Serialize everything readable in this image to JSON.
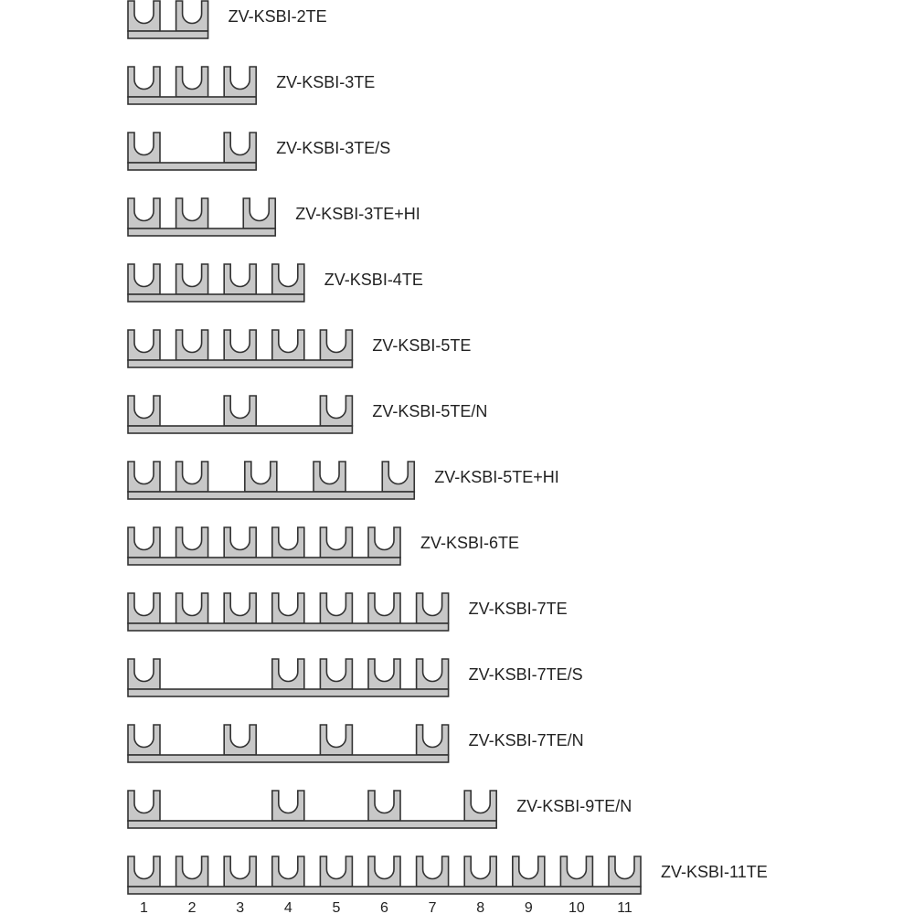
{
  "colors": {
    "fill": "#c8c8c8",
    "stroke": "#333333",
    "text": "#222222"
  },
  "rows": [
    {
      "label": "ZV-KSBI-2TE",
      "positions": [
        1,
        2
      ]
    },
    {
      "label": "ZV-KSBI-3TE",
      "positions": [
        1,
        2,
        3
      ]
    },
    {
      "label": "ZV-KSBI-3TE/S",
      "positions": [
        1,
        3
      ]
    },
    {
      "label": "ZV-KSBI-3TE+HI",
      "positions": [
        1,
        2,
        3.4
      ]
    },
    {
      "label": "ZV-KSBI-4TE",
      "positions": [
        1,
        2,
        3,
        4
      ]
    },
    {
      "label": "ZV-KSBI-5TE",
      "positions": [
        1,
        2,
        3,
        4,
        5
      ]
    },
    {
      "label": "ZV-KSBI-5TE/N",
      "positions": [
        1,
        3,
        5
      ]
    },
    {
      "label": "ZV-KSBI-5TE+HI",
      "positions": [
        1,
        2,
        3.43,
        4.86,
        6.29
      ]
    },
    {
      "label": "ZV-KSBI-6TE",
      "positions": [
        1,
        2,
        3,
        4,
        5,
        6
      ]
    },
    {
      "label": "ZV-KSBI-7TE",
      "positions": [
        1,
        2,
        3,
        4,
        5,
        6,
        7
      ]
    },
    {
      "label": "ZV-KSBI-7TE/S",
      "positions": [
        1,
        4,
        5,
        6,
        7
      ]
    },
    {
      "label": "ZV-KSBI-7TE/N",
      "positions": [
        1,
        3,
        5,
        7
      ]
    },
    {
      "label": "ZV-KSBI-9TE/N",
      "positions": [
        1,
        4,
        6,
        8
      ]
    },
    {
      "label": "ZV-KSBI-11TE",
      "positions": [
        1,
        2,
        3,
        4,
        5,
        6,
        7,
        8,
        9,
        10,
        11
      ]
    }
  ],
  "scale": [
    "1",
    "2",
    "3",
    "4",
    "5",
    "6",
    "7",
    "8",
    "9",
    "10",
    "11"
  ]
}
